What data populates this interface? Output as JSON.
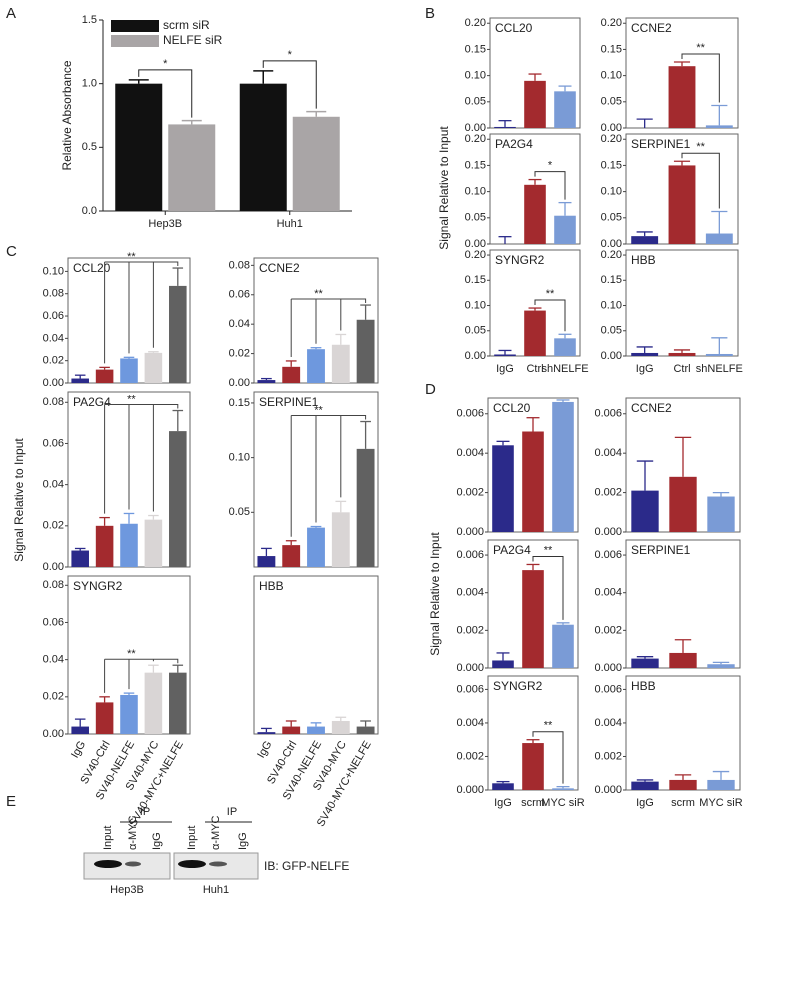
{
  "panels": [
    {
      "label": "A"
    },
    {
      "label": "B",
      "ylabel": "Signal Relative to Input"
    },
    {
      "label": "C",
      "ylabel": "Signal Relative to Input"
    },
    {
      "label": "D",
      "ylabel": "Signal Relative to Input"
    },
    {
      "label": "E"
    }
  ],
  "chart_data": [
    {
      "type": "groupbar",
      "ylabel": "Relative Absorbance",
      "categories": [
        "Hep3B",
        "Huh1"
      ],
      "series": [
        {
          "name": "scrm siR",
          "color": "#111111",
          "values": [
            1.0,
            1.0
          ],
          "errors": [
            0.03,
            0.1
          ]
        },
        {
          "name": "NELFE siR",
          "color": "#a9a5a6",
          "values": [
            0.68,
            0.74
          ],
          "errors": [
            0.03,
            0.04
          ]
        }
      ],
      "ylim": [
        0,
        1.5
      ],
      "yticks": [
        {
          "value": 0,
          "label": "0.0"
        },
        0.5,
        {
          "value": 1,
          "label": "1.0"
        },
        1.5
      ],
      "significance": [
        "*",
        "*"
      ],
      "legend": "upper left"
    },
    {
      "type": "bar",
      "title": "CCL20",
      "categories": [
        null,
        null,
        null
      ],
      "values": [
        0.002,
        0.09,
        0.07
      ],
      "errors": [
        0.012,
        0.013,
        0.01
      ],
      "colors": [
        "#2b2a8a",
        "#a32a2e",
        "#7a9bd6"
      ],
      "ylim": [
        0,
        0.21
      ],
      "yticks": [
        {
          "value": 0,
          "label": "0.00"
        },
        0.05,
        {
          "value": 0.1,
          "label": "0.10"
        },
        0.15,
        {
          "value": 0.2,
          "label": "0.20"
        }
      ]
    },
    {
      "type": "bar",
      "title": "CCNE2",
      "categories": [
        null,
        null,
        null
      ],
      "values": [
        0,
        0.118,
        0.005
      ],
      "errors": [
        0.017,
        0.008,
        0.038
      ],
      "colors": [
        "#2b2a8a",
        "#a32a2e",
        "#7a9bd6"
      ],
      "ylim": [
        0,
        0.21
      ],
      "yticks": [
        {
          "value": 0,
          "label": "0.00"
        },
        0.05,
        {
          "value": 0.1,
          "label": "0.10"
        },
        0.15,
        {
          "value": 0.2,
          "label": "0.20"
        }
      ],
      "significance": "**"
    },
    {
      "type": "bar",
      "title": "PA2G4",
      "categories": [
        null,
        null,
        null
      ],
      "values": [
        0,
        0.113,
        0.054
      ],
      "errors": [
        0.014,
        0.01,
        0.025
      ],
      "colors": [
        "#2b2a8a",
        "#a32a2e",
        "#7a9bd6"
      ],
      "ylim": [
        0,
        0.21
      ],
      "yticks": [
        {
          "value": 0,
          "label": "0.00"
        },
        0.05,
        {
          "value": 0.1,
          "label": "0.10"
        },
        0.15,
        {
          "value": 0.2,
          "label": "0.20"
        }
      ],
      "significance": "*"
    },
    {
      "type": "bar",
      "title": "SERPINE1",
      "categories": [
        null,
        null,
        null
      ],
      "values": [
        0.015,
        0.15,
        0.02
      ],
      "errors": [
        0.008,
        0.008,
        0.042
      ],
      "colors": [
        "#2b2a8a",
        "#a32a2e",
        "#7a9bd6"
      ],
      "ylim": [
        0,
        0.21
      ],
      "yticks": [
        {
          "value": 0,
          "label": "0.00"
        },
        0.05,
        {
          "value": 0.1,
          "label": "0.10"
        },
        0.15,
        {
          "value": 0.2,
          "label": "0.20"
        }
      ],
      "significance": "**"
    },
    {
      "type": "bar",
      "title": "SYNGR2",
      "categories": [
        "IgG",
        "Ctrl",
        "shNELFE"
      ],
      "values": [
        0.003,
        0.09,
        0.035
      ],
      "errors": [
        0.008,
        0.005,
        0.008
      ],
      "colors": [
        "#2b2a8a",
        "#a32a2e",
        "#7a9bd6"
      ],
      "ylim": [
        0,
        0.21
      ],
      "yticks": [
        {
          "value": 0,
          "label": "0.00"
        },
        0.05,
        {
          "value": 0.1,
          "label": "0.10"
        },
        0.15,
        {
          "value": 0.2,
          "label": "0.20"
        }
      ],
      "significance": "**"
    },
    {
      "type": "bar",
      "title": "HBB",
      "categories": [
        "IgG",
        "Ctrl",
        "shNELFE"
      ],
      "values": [
        0.006,
        0.006,
        0.004
      ],
      "errors": [
        0.012,
        0.006,
        0.032
      ],
      "colors": [
        "#2b2a8a",
        "#a32a2e",
        "#7a9bd6"
      ],
      "ylim": [
        0,
        0.21
      ],
      "yticks": [
        {
          "value": 0,
          "label": "0.00"
        },
        0.05,
        {
          "value": 0.1,
          "label": "0.10"
        },
        0.15,
        {
          "value": 0.2,
          "label": "0.20"
        }
      ]
    },
    {
      "type": "bar",
      "title": "CCL20",
      "categories": [
        null,
        null,
        null,
        null,
        null
      ],
      "values": [
        0.004,
        0.012,
        0.022,
        0.027,
        0.087
      ],
      "errors": [
        0.003,
        0.002,
        0.001,
        0.001,
        0.016
      ],
      "colors": [
        "#2b2a8a",
        "#a32a2e",
        "#6e98de",
        "#d9d5d5",
        "#616161"
      ],
      "ylim": [
        0,
        0.112
      ],
      "yticks": [
        {
          "value": 0,
          "label": "0.00"
        },
        0.02,
        0.04,
        0.06,
        0.08,
        {
          "value": 0.1,
          "label": "0.10"
        }
      ],
      "significance": "**"
    },
    {
      "type": "bar",
      "title": "CCNE2",
      "categories": [
        null,
        null,
        null,
        null,
        null
      ],
      "values": [
        0.002,
        0.011,
        0.023,
        0.026,
        0.043
      ],
      "errors": [
        0.001,
        0.004,
        0.001,
        0.007,
        0.01
      ],
      "colors": [
        "#2b2a8a",
        "#a32a2e",
        "#6e98de",
        "#d9d5d5",
        "#616161"
      ],
      "ylim": [
        0,
        0.085
      ],
      "yticks": [
        {
          "value": 0,
          "label": "0.00"
        },
        0.02,
        0.04,
        0.06,
        0.08
      ],
      "significance": "**"
    },
    {
      "type": "bar",
      "title": "PA2G4",
      "categories": [
        null,
        null,
        null,
        null,
        null
      ],
      "values": [
        0.008,
        0.02,
        0.021,
        0.023,
        0.066
      ],
      "errors": [
        0.001,
        0.004,
        0.005,
        0.002,
        0.01
      ],
      "colors": [
        "#2b2a8a",
        "#a32a2e",
        "#6e98de",
        "#d9d5d5",
        "#616161"
      ],
      "ylim": [
        0,
        0.085
      ],
      "yticks": [
        {
          "value": 0,
          "label": "0.00"
        },
        0.02,
        0.04,
        0.06,
        0.08
      ],
      "significance": "**"
    },
    {
      "type": "bar",
      "title": "SERPINE1",
      "categories": [
        null,
        null,
        null,
        null,
        null
      ],
      "values": [
        0.01,
        0.02,
        0.036,
        0.05,
        0.108
      ],
      "errors": [
        0.007,
        0.004,
        0.001,
        0.01,
        0.025
      ],
      "colors": [
        "#2b2a8a",
        "#a32a2e",
        "#6e98de",
        "#d9d5d5",
        "#616161"
      ],
      "ylim": [
        0,
        0.16
      ],
      "yticks": [
        0.05,
        {
          "value": 0.1,
          "label": "0.10"
        },
        0.15
      ],
      "significance": "**"
    },
    {
      "type": "bar",
      "title": "SYNGR2",
      "categories": [
        "IgG",
        "SV40-Ctrl",
        "SV40-NELFE",
        "SV40-MYC",
        "SV40-MYC+NELFE"
      ],
      "values": [
        0.004,
        0.017,
        0.021,
        0.033,
        0.033
      ],
      "errors": [
        0.004,
        0.003,
        0.001,
        0.004,
        0.004
      ],
      "colors": [
        "#2b2a8a",
        "#a32a2e",
        "#6e98de",
        "#d9d5d5",
        "#616161"
      ],
      "ylim": [
        0,
        0.085
      ],
      "yticks": [
        {
          "value": 0,
          "label": "0.00"
        },
        0.02,
        0.04,
        0.06,
        0.08
      ],
      "significance": "**"
    },
    {
      "type": "bar",
      "title": "HBB",
      "categories": [
        "IgG",
        "SV40-Ctrl",
        "SV40-NELFE",
        "SV40-MYC",
        "SV40-MYC+NELFE"
      ],
      "values": [
        0.001,
        0.004,
        0.004,
        0.007,
        0.004
      ],
      "errors": [
        0.002,
        0.003,
        0.002,
        0.002,
        0.003
      ],
      "colors": [
        "#2b2a8a",
        "#a32a2e",
        "#6e98de",
        "#d9d5d5",
        "#616161"
      ],
      "ylim": [
        0,
        0.085
      ]
    },
    {
      "type": "bar",
      "title": "CCL20",
      "categories": [
        null,
        null,
        null
      ],
      "values": [
        0.0044,
        0.0051,
        0.0066
      ],
      "errors": [
        0.0002,
        0.0007,
        0.0001
      ],
      "colors": [
        "#2b2a8a",
        "#a32a2e",
        "#7a9bd6"
      ],
      "ylim": [
        0,
        0.0068
      ],
      "yticks": [
        {
          "value": 0,
          "label": "0.000"
        },
        0.002,
        0.004,
        0.006
      ]
    },
    {
      "type": "bar",
      "title": "CCNE2",
      "categories": [
        null,
        null,
        null
      ],
      "values": [
        0.0021,
        0.0028,
        0.0018
      ],
      "errors": [
        0.0015,
        0.002,
        0.0002
      ],
      "colors": [
        "#2b2a8a",
        "#a32a2e",
        "#7a9bd6"
      ],
      "ylim": [
        0,
        0.0068
      ],
      "yticks": [
        {
          "value": 0,
          "label": "0.000"
        },
        0.002,
        0.004,
        0.006
      ]
    },
    {
      "type": "bar",
      "title": "PA2G4",
      "categories": [
        null,
        null,
        null
      ],
      "values": [
        0.0004,
        0.0052,
        0.0023
      ],
      "errors": [
        0.0004,
        0.0003,
        0.0001
      ],
      "colors": [
        "#2b2a8a",
        "#a32a2e",
        "#7a9bd6"
      ],
      "ylim": [
        0,
        0.0068
      ],
      "yticks": [
        {
          "value": 0,
          "label": "0.000"
        },
        0.002,
        0.004,
        0.006
      ],
      "significance": "**"
    },
    {
      "type": "bar",
      "title": "SERPINE1",
      "categories": [
        null,
        null,
        null
      ],
      "values": [
        0.0005,
        0.0008,
        0.0002
      ],
      "errors": [
        0.0001,
        0.0007,
        0.0001
      ],
      "colors": [
        "#2b2a8a",
        "#a32a2e",
        "#7a9bd6"
      ],
      "ylim": [
        0,
        0.0068
      ],
      "yticks": [
        {
          "value": 0,
          "label": "0.000"
        },
        0.002,
        0.004,
        0.006
      ]
    },
    {
      "type": "bar",
      "title": "SYNGR2",
      "categories": [
        "IgG",
        "scrm",
        "MYC siR"
      ],
      "values": [
        0.0004,
        0.0028,
        0.0001
      ],
      "errors": [
        0.0001,
        0.0002,
        0.0001
      ],
      "colors": [
        "#2b2a8a",
        "#a32a2e",
        "#7a9bd6"
      ],
      "ylim": [
        0,
        0.0068
      ],
      "yticks": [
        {
          "value": 0,
          "label": "0.000"
        },
        0.002,
        0.004,
        0.006
      ],
      "significance": "**"
    },
    {
      "type": "bar",
      "title": "HBB",
      "categories": [
        "IgG",
        "scrm",
        "MYC siR"
      ],
      "values": [
        0.0005,
        0.0006,
        0.0006
      ],
      "errors": [
        0.0001,
        0.0003,
        0.0005
      ],
      "colors": [
        "#2b2a8a",
        "#a32a2e",
        "#7a9bd6"
      ],
      "ylim": [
        0,
        0.0068
      ],
      "yticks": [
        {
          "value": 0,
          "label": "0.000"
        },
        0.002,
        0.004,
        0.006
      ]
    }
  ],
  "blot": {
    "ip_labels": [
      "IP",
      "IP"
    ],
    "lanes": [
      [
        "Input",
        "α-MYC",
        "IgG"
      ],
      [
        "Input",
        "α-MYC",
        "IgG"
      ]
    ],
    "cell_lines": [
      "Hep3B",
      "Huh1"
    ],
    "antibody": "IB: GFP-NELFE"
  }
}
